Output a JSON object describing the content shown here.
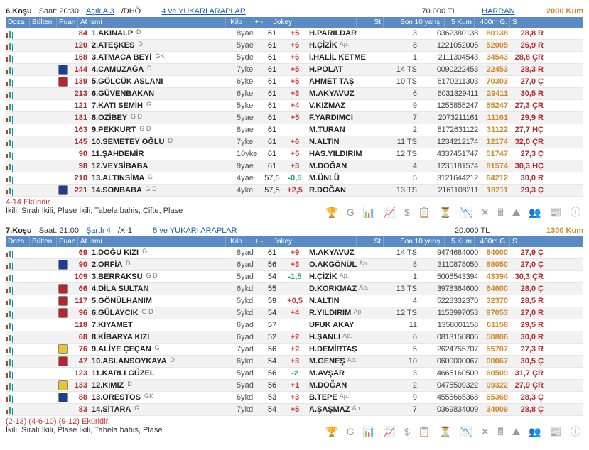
{
  "races": [
    {
      "no": "6.Koşu",
      "time": "Saat: 20:30",
      "cond": "Açık  A 3",
      "dho": "/DHÖ",
      "cat": "4 ve YUKARI ARAPLAR",
      "prize": "70.000 TL",
      "track": "HARRAN",
      "dist": "2000 Kum",
      "foot_note": "4-14 Eküridir.",
      "foot_bet": "İkili, Sıralı İkili, Plase İkili, Tabela bahis, Çifte, Plase",
      "rows": [
        {
          "silk": "",
          "pu": "84",
          "name": "1.AKINALP",
          "sup": "D",
          "byae": "8yae",
          "kilo": "61",
          "pm": "+5",
          "jok": "H.PARILDAR",
          "ap": "",
          "st": "3",
          "son": "0362380138",
          "k5": "80138",
          "m4": "28,8 R"
        },
        {
          "silk": "",
          "pu": "120",
          "name": "2.ATEŞKES",
          "sup": "D",
          "byae": "5yae",
          "kilo": "61",
          "pm": "+6",
          "jok": "H.ÇİZİK",
          "ap": "Ap.",
          "st": "8",
          "son": "1221052005",
          "k5": "52005",
          "m4": "26,9 R"
        },
        {
          "silk": "",
          "pu": "168",
          "name": "3.ATMACA BEYİ",
          "sup": "GK",
          "byae": "5yde",
          "kilo": "61",
          "pm": "+6",
          "jok": "İ.HALİL KETME",
          "ap": "",
          "st": "1",
          "son": "2111304543",
          "k5": "34543",
          "m4": "28,8 ÇR"
        },
        {
          "silk": "blue",
          "pu": "144",
          "name": "4.CAMUZAĞA",
          "sup": "D",
          "byae": "7yke",
          "kilo": "61",
          "pm": "+5",
          "jok": "H.POLAT",
          "ap": "",
          "st": "14 TS",
          "son": "0090222453",
          "k5": "22453",
          "m4": "28,3 R"
        },
        {
          "silk": "red",
          "pu": "139",
          "name": "5.GÖLCÜK ASLANI",
          "sup": "",
          "byae": "6yke",
          "kilo": "61",
          "pm": "+5",
          "jok": "AHMET TAŞ",
          "ap": "",
          "st": "10 TS",
          "son": "6170211303",
          "k5": "70303",
          "m4": "27,0 Ç"
        },
        {
          "silk": "",
          "pu": "213",
          "name": "6.GÜVENBAKAN",
          "sup": "",
          "byae": "6yke",
          "kilo": "61",
          "pm": "+3",
          "jok": "M.AKYAVUZ",
          "ap": "",
          "st": "6",
          "son": "6031329411",
          "k5": "29411",
          "m4": "30,5 R"
        },
        {
          "silk": "",
          "pu": "121",
          "name": "7.KATI SEMİH",
          "sup": "G",
          "byae": "5yke",
          "kilo": "61",
          "pm": "+4",
          "jok": "V.KIZMAZ",
          "ap": "",
          "st": "9",
          "son": "1255855247",
          "k5": "55247",
          "m4": "27,3 ÇR"
        },
        {
          "silk": "",
          "pu": "181",
          "name": "8.OZİBEY",
          "sup": "G D",
          "byae": "5yae",
          "kilo": "61",
          "pm": "+5",
          "jok": "F.YARDIMCI",
          "ap": "",
          "st": "7",
          "son": "2073211161",
          "k5": "11161",
          "m4": "29,9 R"
        },
        {
          "silk": "",
          "pu": "163",
          "name": "9.PEKKURT",
          "sup": "G D",
          "byae": "8yae",
          "kilo": "61",
          "pm": "",
          "jok": "M.TURAN",
          "ap": "",
          "st": "2",
          "son": "8172631122",
          "k5": "31122",
          "m4": "27,7 HÇ"
        },
        {
          "silk": "",
          "pu": "145",
          "name": "10.SEMETEY OĞLU",
          "sup": "D",
          "byae": "7yke",
          "kilo": "61",
          "pm": "+6",
          "jok": "N.ALTIN",
          "ap": "",
          "st": "11 TS",
          "son": "1234212174",
          "k5": "12174",
          "m4": "32,0 ÇR"
        },
        {
          "silk": "",
          "pu": "90",
          "name": "11.ŞAHDEMİR",
          "sup": "",
          "byae": "10yke",
          "kilo": "61",
          "pm": "+5",
          "jok": "HAS.YILDIRIM",
          "ap": "",
          "st": "12 TS",
          "son": "4337451747",
          "k5": "51747",
          "m4": "27,3 Ç"
        },
        {
          "silk": "",
          "pu": "98",
          "name": "12.VEYSİBABA",
          "sup": "",
          "byae": "9yae",
          "kilo": "61",
          "pm": "+3",
          "jok": "M.DOĞAN",
          "ap": "",
          "st": "4",
          "son": "1235181574",
          "k5": "81574",
          "m4": "30,3 HÇ"
        },
        {
          "silk": "",
          "pu": "210",
          "name": "13.ALTINSİMA",
          "sup": "G",
          "byae": "4yae",
          "kilo": "57,5",
          "pm": "-0,5",
          "jok": "M.ÜNLÜ",
          "ap": "",
          "st": "5",
          "son": "3121644212",
          "k5": "64212",
          "m4": "30,0 R"
        },
        {
          "silk": "blue",
          "pu": "221",
          "name": "14.SONBABA",
          "sup": "G D",
          "byae": "4yke",
          "kilo": "57,5",
          "pm": "+2,5",
          "jok": "R.DOĞAN",
          "ap": "",
          "st": "13 TS",
          "son": "2161108211",
          "k5": "18211",
          "m4": "29,3 Ç"
        }
      ]
    },
    {
      "no": "7.Koşu",
      "time": "Saat: 21:00",
      "cond": "Şartlı  4",
      "dho": "/X-1",
      "cat": "5 ve YUKARI ARAPLAR",
      "prize": "20.000 TL",
      "track": "",
      "dist": "1300 Kum",
      "foot_note": "(2-13) (4-6-10) (9-12) Eküridir.",
      "foot_bet": "İkili, Sıralı İkili, Plase İkili, Tabela bahis, Plase",
      "rows": [
        {
          "silk": "",
          "pu": "69",
          "name": "1.DOĞU KIZI",
          "sup": "G",
          "byae": "8yad",
          "kilo": "61",
          "pm": "+9",
          "jok": "M.AKYAVUZ",
          "ap": "",
          "st": "14 TS",
          "son": "9474684000",
          "k5": "84000",
          "m4": "27,9 Ç"
        },
        {
          "silk": "blue",
          "pu": "90",
          "name": "2.ORFİA",
          "sup": "D",
          "byae": "6yad",
          "kilo": "56",
          "pm": "+3",
          "jok": "O.AKGÖNÜL",
          "ap": "Ap.",
          "st": "8",
          "son": "3110878050",
          "k5": "88050",
          "m4": "27,0 Ç"
        },
        {
          "silk": "",
          "pu": "109",
          "name": "3.BERRAKSU",
          "sup": "G D",
          "byae": "5yad",
          "kilo": "54",
          "pm": "-1,5",
          "jok": "H.ÇİZİK",
          "ap": "Ap.",
          "st": "1",
          "son": "5006543394",
          "k5": "43394",
          "m4": "30,3 ÇR"
        },
        {
          "silk": "red",
          "pu": "66",
          "name": "4.DİLA SULTAN",
          "sup": "",
          "byae": "6ykd",
          "kilo": "55",
          "pm": "",
          "jok": "D.KORKMAZ",
          "ap": "Ap.",
          "st": "13 TS",
          "son": "3978364600",
          "k5": "64600",
          "m4": "28,0 Ç"
        },
        {
          "silk": "red",
          "pu": "117",
          "name": "5.GÖNÜLHANIM",
          "sup": "",
          "byae": "5ykd",
          "kilo": "59",
          "pm": "+0,5",
          "jok": "N.ALTIN",
          "ap": "",
          "st": "4",
          "son": "5228332370",
          "k5": "32370",
          "m4": "28,5 R"
        },
        {
          "silk": "red",
          "pu": "96",
          "name": "6.GÜLAYCIK",
          "sup": "G D",
          "byae": "5ykd",
          "kilo": "54",
          "pm": "+4",
          "jok": "R.YILDIRIM",
          "ap": "Ap.",
          "st": "12 TS",
          "son": "1153997053",
          "k5": "97053",
          "m4": "27,0 R"
        },
        {
          "silk": "",
          "pu": "118",
          "name": "7.KIYAMET",
          "sup": "",
          "byae": "6yad",
          "kilo": "57",
          "pm": "",
          "jok": "UFUK AKAY",
          "ap": "",
          "st": "11",
          "son": "1358001158",
          "k5": "01158",
          "m4": "29,5 R"
        },
        {
          "silk": "",
          "pu": "68",
          "name": "8.KİBARYA KIZI",
          "sup": "",
          "byae": "6yad",
          "kilo": "52",
          "pm": "+2",
          "jok": "H.ŞANLI",
          "ap": "Ap.",
          "st": "6",
          "son": "0813150806",
          "k5": "50806",
          "m4": "30,0 R"
        },
        {
          "silk": "yellow",
          "pu": "76",
          "name": "9.ALİYE ÇEÇAN",
          "sup": "G",
          "byae": "7yad",
          "kilo": "56",
          "pm": "+2",
          "jok": "H.DEMİRTAŞ",
          "ap": "",
          "st": "5",
          "son": "2624755707",
          "k5": "55707",
          "m4": "27,3 R"
        },
        {
          "silk": "red",
          "pu": "47",
          "name": "10.ASLANSOYKAYA",
          "sup": "D",
          "byae": "6ykd",
          "kilo": "54",
          "pm": "+3",
          "jok": "M.GENEŞ",
          "ap": "Ap.",
          "st": "10",
          "son": "0600000067",
          "k5": "00067",
          "m4": "30,5 Ç"
        },
        {
          "silk": "",
          "pu": "123",
          "name": "11.KARLI GÜZEL",
          "sup": "",
          "byae": "5yad",
          "kilo": "56",
          "pm": "-2",
          "jok": "M.AVŞAR",
          "ap": "",
          "st": "3",
          "son": "4665160509",
          "k5": "60509",
          "m4": "31,7 ÇR"
        },
        {
          "silk": "yellow",
          "pu": "133",
          "name": "12.KIMIZ",
          "sup": "D",
          "byae": "5yad",
          "kilo": "56",
          "pm": "+1",
          "jok": "M.DOĞAN",
          "ap": "",
          "st": "2",
          "son": "0475509322",
          "k5": "09322",
          "m4": "27,9 ÇR"
        },
        {
          "silk": "blue",
          "pu": "88",
          "name": "13.ORESTOS",
          "sup": "GK",
          "byae": "6ykd",
          "kilo": "53",
          "pm": "+3",
          "jok": "B.TEPE",
          "ap": "Ap.",
          "st": "9",
          "son": "4555665368",
          "k5": "65368",
          "m4": "28,3 Ç"
        },
        {
          "silk": "",
          "pu": "83",
          "name": "14.SİTARA",
          "sup": "G",
          "byae": "7ykd",
          "kilo": "54",
          "pm": "+5",
          "jok": "A.ŞAŞMAZ",
          "ap": "Ap.",
          "st": "7",
          "son": "0369834009",
          "k5": "34009",
          "m4": "28,8 Ç"
        }
      ]
    }
  ],
  "cols": {
    "doz": "Doza",
    "bul": "Bülten",
    "pu": "Puan",
    "name": "At İsmi",
    "kilo": "Kilo",
    "pm": "+ -",
    "jok": "Jokey",
    "st": "St",
    "son": "Son 10 yarışı",
    "k5": "5 Kum",
    "m4": "400m G.",
    "s": "S"
  },
  "icons": "🏆 G 📊 📈 $ 📋 ⏳ 📉 ✕ 🖩 ⛰ 👥 📰 ⓘ"
}
